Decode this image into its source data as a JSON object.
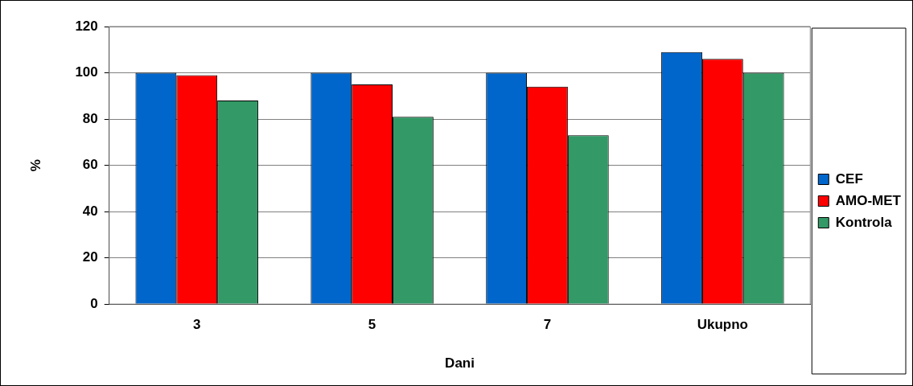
{
  "chart_data": {
    "type": "bar",
    "xlabel": "Dani",
    "ylabel": "%",
    "categories": [
      "3",
      "5",
      "7",
      "Ukupno"
    ],
    "series": [
      {
        "name": "CEF",
        "color": "#0066cc",
        "values": [
          100,
          100,
          100,
          109
        ]
      },
      {
        "name": "AMO-MET",
        "color": "#ff0000",
        "values": [
          99,
          95,
          94,
          106
        ]
      },
      {
        "name": "Kontrola",
        "color": "#339966",
        "values": [
          88,
          81,
          73,
          100
        ]
      }
    ],
    "ylim": [
      0,
      120
    ],
    "yticks": [
      0,
      20,
      40,
      60,
      80,
      100,
      120
    ],
    "grid": "y",
    "legend": "right"
  }
}
